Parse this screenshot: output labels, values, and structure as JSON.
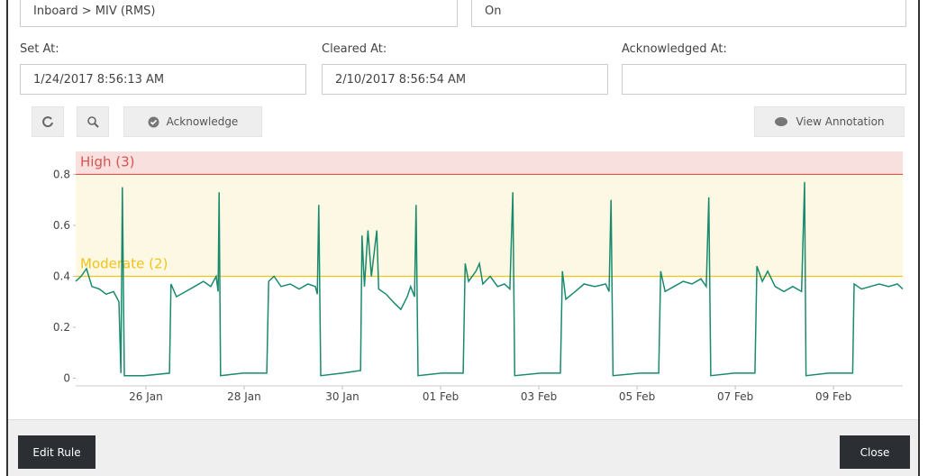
{
  "fields": {
    "source": "Inboard > MIV (RMS)",
    "state": "On"
  },
  "labels": {
    "set": "Set At:",
    "cleared": "Cleared At:",
    "acknowledged": "Acknowledged At:"
  },
  "values": {
    "set": "1/24/2017 8:56:13 AM",
    "cleared": "2/10/2017 8:56:54 AM",
    "acknowledged": ""
  },
  "buttons": {
    "acknowledge": "Acknowledge",
    "annotation": "View Annotation",
    "edit": "Edit Rule",
    "close": "Close"
  },
  "chart_data": {
    "type": "line",
    "xlim": [
      24.57,
      41.41
    ],
    "ylim": [
      -0.03,
      0.89
    ],
    "yticks": [
      0,
      0.2,
      0.4,
      0.6,
      0.8
    ],
    "xticks": [
      {
        "value": 26,
        "label": "26 Jan"
      },
      {
        "value": 28,
        "label": "28 Jan"
      },
      {
        "value": 30,
        "label": "30 Jan"
      },
      {
        "value": 32,
        "label": "01 Feb"
      },
      {
        "value": 34,
        "label": "03 Feb"
      },
      {
        "value": 36,
        "label": "05 Feb"
      },
      {
        "value": 38,
        "label": "07 Feb"
      },
      {
        "value": 40,
        "label": "09 Feb"
      }
    ],
    "thresholds": [
      {
        "label": "High (3)",
        "value": 0.8,
        "color": "#d9534f"
      },
      {
        "label": "Moderate (2)",
        "value": 0.4,
        "color": "#f0c419"
      }
    ],
    "x": [
      24.57,
      24.68,
      24.79,
      24.9,
      25.05,
      25.19,
      25.34,
      25.45,
      25.49,
      25.52,
      25.56,
      25.96,
      26.48,
      26.51,
      26.62,
      26.81,
      26.99,
      27.17,
      27.32,
      27.43,
      27.47,
      27.49,
      27.52,
      27.98,
      28.46,
      28.5,
      28.61,
      28.75,
      28.94,
      29.12,
      29.3,
      29.45,
      29.49,
      29.52,
      29.56,
      30.0,
      30.37,
      30.4,
      30.45,
      30.52,
      30.59,
      30.7,
      30.74,
      30.89,
      31.03,
      31.19,
      31.32,
      31.39,
      31.47,
      31.5,
      31.54,
      32.02,
      32.46,
      32.5,
      32.57,
      32.72,
      32.79,
      32.86,
      33.01,
      33.16,
      33.3,
      33.41,
      33.47,
      33.51,
      34.04,
      34.44,
      34.48,
      34.55,
      34.74,
      34.92,
      35.14,
      35.36,
      35.43,
      35.47,
      35.51,
      36.06,
      36.44,
      36.48,
      36.57,
      36.75,
      36.94,
      37.12,
      37.3,
      37.41,
      37.46,
      37.5,
      37.98,
      38.4,
      38.44,
      38.55,
      38.66,
      38.81,
      38.99,
      39.17,
      39.35,
      39.41,
      39.44,
      39.9,
      40.39,
      40.42,
      40.57,
      40.75,
      40.93,
      41.12,
      41.3,
      41.41
    ],
    "series": [
      {
        "color": "#1a8a6e",
        "values": [
          0.38,
          0.4,
          0.43,
          0.36,
          0.35,
          0.33,
          0.34,
          0.3,
          0.02,
          0.75,
          0.01,
          0.01,
          0.02,
          0.37,
          0.32,
          0.34,
          0.36,
          0.38,
          0.36,
          0.4,
          0.34,
          0.73,
          0.01,
          0.02,
          0.02,
          0.38,
          0.4,
          0.36,
          0.37,
          0.35,
          0.37,
          0.36,
          0.33,
          0.68,
          0.01,
          0.02,
          0.03,
          0.56,
          0.36,
          0.58,
          0.4,
          0.58,
          0.35,
          0.33,
          0.3,
          0.27,
          0.32,
          0.36,
          0.32,
          0.68,
          0.01,
          0.02,
          0.02,
          0.45,
          0.38,
          0.42,
          0.45,
          0.37,
          0.4,
          0.36,
          0.37,
          0.35,
          0.73,
          0.01,
          0.02,
          0.02,
          0.42,
          0.31,
          0.34,
          0.37,
          0.36,
          0.37,
          0.34,
          0.7,
          0.01,
          0.02,
          0.02,
          0.42,
          0.34,
          0.36,
          0.38,
          0.37,
          0.39,
          0.36,
          0.71,
          0.01,
          0.02,
          0.02,
          0.44,
          0.38,
          0.42,
          0.36,
          0.34,
          0.36,
          0.34,
          0.77,
          0.01,
          0.02,
          0.02,
          0.37,
          0.35,
          0.36,
          0.37,
          0.36,
          0.37,
          0.35
        ]
      }
    ]
  }
}
